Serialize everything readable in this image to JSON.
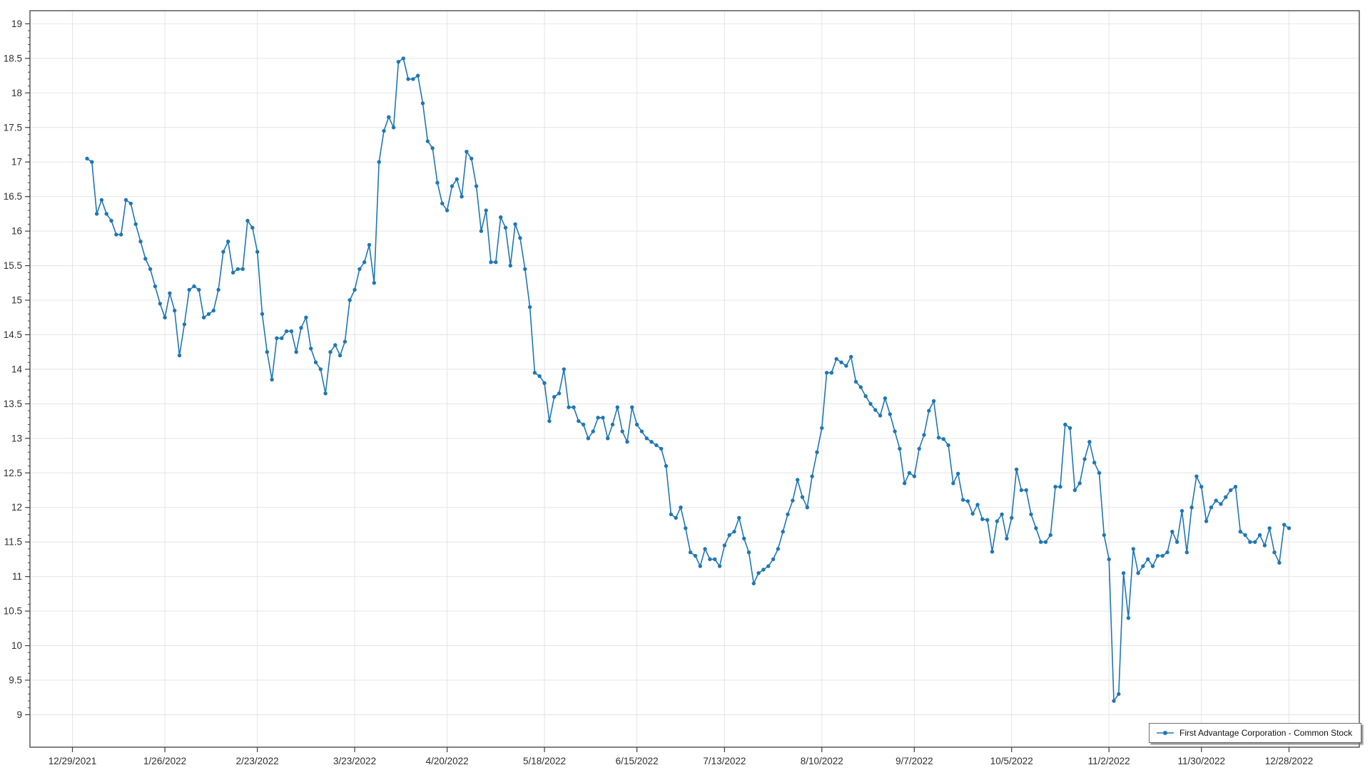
{
  "window": {
    "background": "#ffffff"
  },
  "legend": {
    "label": "First Advantage Corporation - Common Stock"
  },
  "chart_data": {
    "type": "line",
    "title": "",
    "xlabel": "",
    "ylabel": "",
    "grid": true,
    "legend_position": "bottom-right",
    "plot": {
      "background": "#ffffff",
      "grid_color": "#e4e4e4",
      "axis_color": "#3f3f3f",
      "label_color": "#2e2e2e"
    },
    "x": {
      "unit": "consecutive trading days",
      "start_date": "1/3/2022",
      "end_date": "12/28/2022",
      "tick_labels": [
        "12/29/2021",
        "1/26/2022",
        "2/23/2022",
        "3/23/2022",
        "4/20/2022",
        "5/18/2022",
        "6/15/2022",
        "7/13/2022",
        "8/10/2022",
        "9/7/2022",
        "10/5/2022",
        "11/2/2022",
        "11/30/2022",
        "12/28/2022"
      ],
      "tick_indices": [
        -3,
        16,
        35,
        55,
        74,
        94,
        113,
        131,
        151,
        170,
        190,
        210,
        229,
        247
      ]
    },
    "y": {
      "min": 8.53,
      "max": 19.19,
      "tick_step": 0.5,
      "minor_tick_step": 0.1,
      "tick_labels": [
        "9",
        "9.5",
        "10",
        "10.5",
        "11",
        "11.5",
        "12",
        "12.5",
        "13",
        "13.5",
        "14",
        "14.5",
        "15",
        "15.5",
        "16",
        "16.5",
        "17",
        "17.5",
        "18",
        "18.5",
        "19"
      ]
    },
    "series": [
      {
        "name": "First Advantage Corporation - Common Stock",
        "color": "#1f77b4",
        "marker": "circle",
        "values": [
          17.05,
          17.0,
          16.25,
          16.45,
          16.25,
          16.15,
          15.95,
          15.95,
          16.45,
          16.4,
          16.1,
          15.85,
          15.6,
          15.45,
          15.2,
          14.95,
          14.75,
          15.1,
          14.85,
          14.2,
          14.65,
          15.15,
          15.2,
          15.15,
          14.75,
          14.8,
          14.85,
          15.15,
          15.7,
          15.85,
          15.4,
          15.45,
          15.45,
          16.15,
          16.05,
          15.7,
          14.8,
          14.25,
          13.85,
          14.45,
          14.45,
          14.55,
          14.55,
          14.25,
          14.6,
          14.75,
          14.3,
          14.1,
          14.0,
          13.65,
          14.25,
          14.35,
          14.2,
          14.4,
          15.0,
          15.15,
          15.45,
          15.55,
          15.8,
          15.25,
          17.0,
          17.45,
          17.65,
          17.5,
          18.45,
          18.5,
          18.2,
          18.2,
          18.25,
          17.85,
          17.3,
          17.2,
          16.7,
          16.4,
          16.3,
          16.65,
          16.75,
          16.5,
          17.15,
          17.05,
          16.65,
          16.0,
          16.3,
          15.55,
          15.55,
          16.2,
          16.05,
          15.5,
          16.1,
          15.9,
          15.45,
          14.9,
          13.95,
          13.9,
          13.8,
          13.25,
          13.6,
          13.65,
          14.0,
          13.45,
          13.45,
          13.25,
          13.2,
          13.0,
          13.1,
          13.3,
          13.3,
          13.0,
          13.2,
          13.45,
          13.1,
          12.95,
          13.45,
          13.2,
          13.1,
          13.0,
          12.95,
          12.9,
          12.85,
          12.6,
          11.9,
          11.85,
          12.0,
          11.7,
          11.35,
          11.3,
          11.15,
          11.4,
          11.25,
          11.25,
          11.15,
          11.45,
          11.6,
          11.65,
          11.85,
          11.55,
          11.35,
          10.9,
          11.05,
          11.1,
          11.15,
          11.25,
          11.4,
          11.65,
          11.9,
          12.1,
          12.4,
          12.15,
          12.0,
          12.45,
          12.8,
          13.15,
          13.95,
          13.95,
          14.15,
          14.1,
          14.05,
          14.18,
          13.82,
          13.74,
          13.61,
          13.5,
          13.41,
          13.33,
          13.58,
          13.35,
          13.1,
          12.85,
          12.35,
          12.5,
          12.45,
          12.85,
          13.05,
          13.4,
          13.54,
          13.01,
          12.99,
          12.9,
          12.35,
          12.49,
          12.11,
          12.09,
          11.91,
          12.04,
          11.83,
          11.82,
          11.36,
          11.8,
          11.9,
          11.55,
          11.85,
          12.55,
          12.25,
          12.25,
          11.9,
          11.7,
          11.5,
          11.5,
          11.6,
          12.3,
          12.3,
          13.2,
          13.15,
          12.25,
          12.35,
          12.7,
          12.95,
          12.65,
          12.5,
          11.6,
          11.25,
          9.2,
          9.3,
          11.05,
          10.4,
          11.4,
          11.05,
          11.15,
          11.25,
          11.15,
          11.3,
          11.3,
          11.35,
          11.65,
          11.5,
          11.95,
          11.35,
          12.0,
          12.45,
          12.3,
          11.8,
          12.0,
          12.1,
          12.05,
          12.15,
          12.25,
          12.3,
          11.65,
          11.6,
          11.5,
          11.5,
          11.6,
          11.45,
          11.7,
          11.35,
          11.2,
          11.75,
          11.7
        ]
      }
    ]
  }
}
